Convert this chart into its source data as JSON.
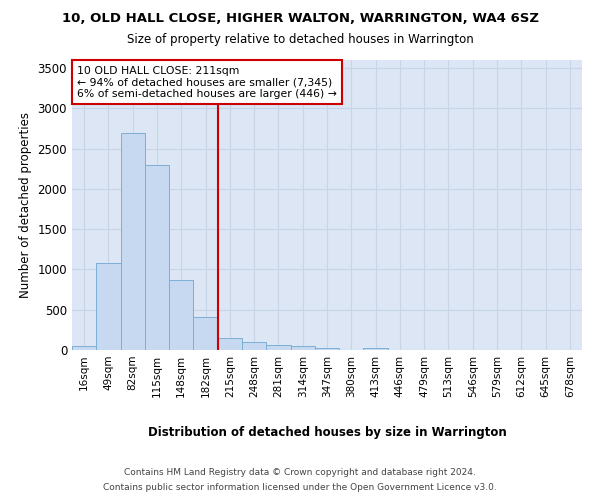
{
  "title": "10, OLD HALL CLOSE, HIGHER WALTON, WARRINGTON, WA4 6SZ",
  "subtitle": "Size of property relative to detached houses in Warrington",
  "xlabel": "Distribution of detached houses by size in Warrington",
  "ylabel": "Number of detached properties",
  "footer_line1": "Contains HM Land Registry data © Crown copyright and database right 2024.",
  "footer_line2": "Contains public sector information licensed under the Open Government Licence v3.0.",
  "bar_labels": [
    "16sqm",
    "49sqm",
    "82sqm",
    "115sqm",
    "148sqm",
    "182sqm",
    "215sqm",
    "248sqm",
    "281sqm",
    "314sqm",
    "347sqm",
    "380sqm",
    "413sqm",
    "446sqm",
    "479sqm",
    "513sqm",
    "546sqm",
    "579sqm",
    "612sqm",
    "645sqm",
    "678sqm"
  ],
  "bar_values": [
    50,
    1075,
    2700,
    2300,
    870,
    415,
    155,
    100,
    65,
    45,
    30,
    0,
    20,
    0,
    0,
    0,
    0,
    0,
    0,
    0,
    0
  ],
  "bar_color": "#c6d9f0",
  "bar_edge_color": "#7bafd4",
  "grid_color": "#c8d4e8",
  "plot_bg_color": "#dce6f5",
  "vline_color": "#cc0000",
  "vline_x_index": 6,
  "annotation_text_line1": "10 OLD HALL CLOSE: 211sqm",
  "annotation_text_line2": "← 94% of detached houses are smaller (7,345)",
  "annotation_text_line3": "6% of semi-detached houses are larger (446) →",
  "annotation_box_color": "#ffffff",
  "annotation_box_edge": "#cc0000",
  "ylim": [
    0,
    3600
  ],
  "yticks": [
    0,
    500,
    1000,
    1500,
    2000,
    2500,
    3000,
    3500
  ]
}
